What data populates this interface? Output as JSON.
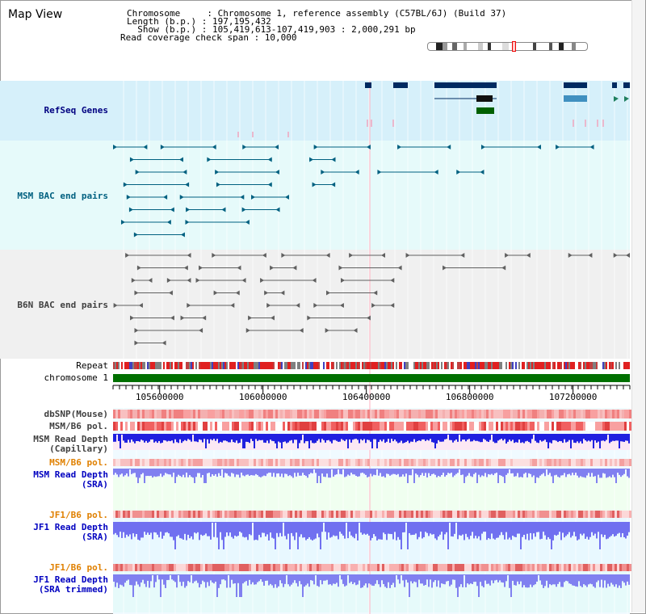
{
  "title": "Map View",
  "info": {
    "chromosome_line": "Chromosome     : Chromosome 1, reference assembly (C57BL/6J) (Build 37)",
    "length_line": "Length (b.p.) : 197,195,432",
    "show_line": "  Show (b.p.) : 105,419,613-107,419,903 : 2,000,291 bp",
    "coverage_line": "Read coverage check span : 10,000"
  },
  "tracks": {
    "refseq": "RefSeq Genes",
    "msm_bac": "MSM BAC end pairs",
    "b6n_bac": "B6N BAC end pairs",
    "repeat": "Repeat",
    "chromosome": "chromosome 1",
    "dbsnp": "dbSNP(Mouse)",
    "msm_pol": "MSM/B6 pol.",
    "msm_depth_cap_1": "MSM Read Depth",
    "msm_depth_cap_2": "(Capillary)",
    "msm_pol_sra": "MSM/B6 pol.",
    "msm_depth_sra_1": "MSM Read Depth",
    "msm_depth_sra_2": "(SRA)",
    "jf1_pol": "JF1/B6 pol.",
    "jf1_depth_1": "JF1 Read Depth",
    "jf1_depth_2": "(SRA)",
    "jf1_pol_trim": "JF1/B6 pol.",
    "jf1_trim_1": "JF1 Read Depth",
    "jf1_trim_2": "(SRA trimmed)"
  },
  "axis": {
    "ticks": [
      {
        "value": 105600000,
        "label": "105600000"
      },
      {
        "value": 106000000,
        "label": "106000000"
      },
      {
        "value": 106400000,
        "label": "106400000"
      },
      {
        "value": 106800000,
        "label": "106800000"
      },
      {
        "value": 107200000,
        "label": "107200000"
      }
    ],
    "start": 105419613,
    "end": 107419903
  },
  "colors": {
    "refseq_label": "#000080",
    "msm_label": "#006080",
    "b6n_label": "#404040",
    "orange_label": "#e08000",
    "blue_label": "#0000c0",
    "gene": "#002a60",
    "chrom_bar": "#007000",
    "refseq_bg": "#d6f0fa",
    "msm_bg": "#e6fafa",
    "b6n_bg": "#f0f0f0"
  },
  "icons": [
    "chromosome-ideogram-icon",
    "region-marker-icon"
  ]
}
